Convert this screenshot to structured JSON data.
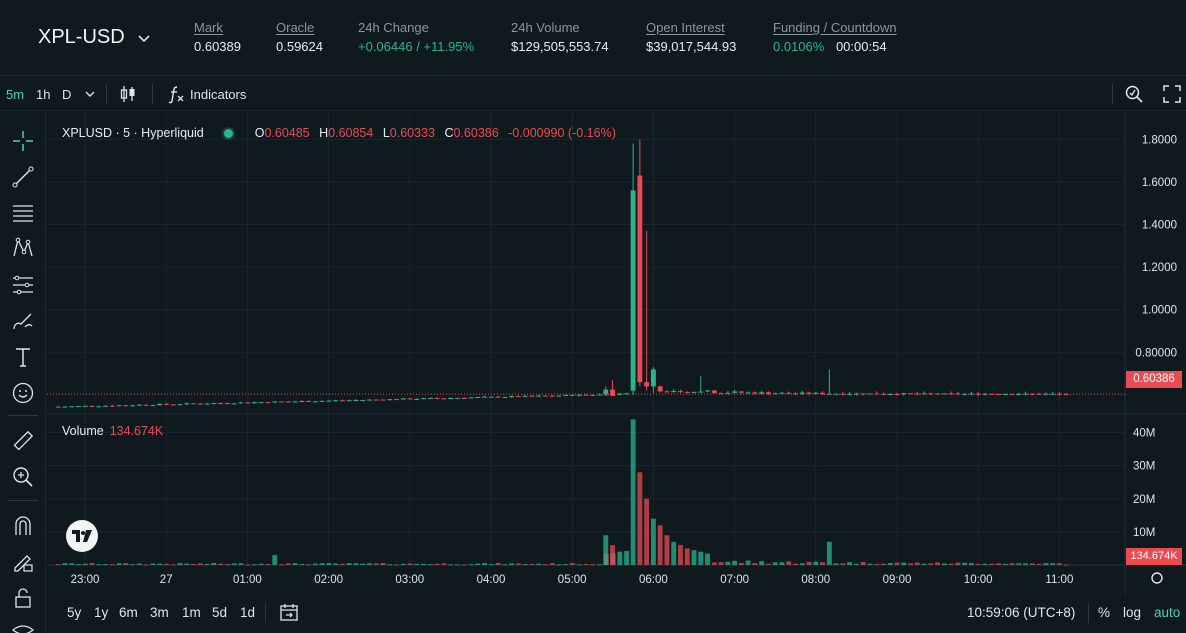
{
  "header": {
    "market": "XPL-USD",
    "stats": [
      {
        "label": "Mark",
        "value": "0.60389",
        "underline": true
      },
      {
        "label": "Oracle",
        "value": "0.59624",
        "underline": true
      },
      {
        "label": "24h Change",
        "value": "+0.06446 / +11.95%",
        "underline": false
      },
      {
        "label": "24h Volume",
        "value": "$129,505,553.74",
        "underline": false
      },
      {
        "label": "Open Interest",
        "value": "$39,017,544.93",
        "underline": true
      },
      {
        "label": "Funding / Countdown",
        "value": "0.0106%",
        "value2": "00:00:54",
        "underline": true
      }
    ]
  },
  "toolbar": {
    "timeframes": [
      "5m",
      "1h",
      "D"
    ],
    "active_timeframe": "5m",
    "indicators_label": "Indicators"
  },
  "legend": {
    "symbol": "XPLUSD · 5 · Hyperliquid",
    "o_label": "O",
    "o": "0.60485",
    "h_label": "H",
    "h": "0.60854",
    "l_label": "L",
    "l": "0.60333",
    "c_label": "C",
    "c": "0.60386",
    "change": "-0.000990 (-0.16%)"
  },
  "volume_legend": {
    "label": "Volume",
    "value": "134.674K"
  },
  "price_tag": "0.60386",
  "volume_tag": "134.674K",
  "bottombar": {
    "ranges": [
      "5y",
      "1y",
      "6m",
      "3m",
      "1m",
      "5d",
      "1d"
    ],
    "clock": "10:59:06 (UTC+8)",
    "percent": "%",
    "log": "log",
    "auto": "auto"
  },
  "colors": {
    "up": "#2bb38c",
    "down": "#ea4b52",
    "bg": "#0f1a1f",
    "grid": "#1a262b",
    "accent": "#4fd1b4"
  },
  "chart_data": {
    "type": "candlestick",
    "symbol": "XPLUSD",
    "interval": "5",
    "x_tick_labels": [
      "23:00",
      "27",
      "01:00",
      "02:00",
      "03:00",
      "04:00",
      "05:00",
      "06:00",
      "07:00",
      "08:00",
      "09:00",
      "10:00",
      "11:00"
    ],
    "price_axis_labels": [
      "1.8000",
      "1.6000",
      "1.4000",
      "1.2000",
      "1.0000",
      "0.80000"
    ],
    "price_axis_values": [
      1.8,
      1.6,
      1.4,
      1.2,
      1.0,
      0.8
    ],
    "ylim_price": [
      0.52,
      1.9
    ],
    "volume_axis_labels": [
      "40M",
      "30M",
      "20M",
      "10M"
    ],
    "volume_axis_values": [
      40000000,
      30000000,
      20000000,
      10000000
    ],
    "ylim_volume": [
      0,
      45000000
    ],
    "last_price": 0.60386,
    "last_volume": 134674,
    "candles_sample": [
      {
        "time": "05:45",
        "open": 0.62,
        "high": 1.78,
        "low": 0.6,
        "close": 1.56,
        "volume": 44000000
      },
      {
        "time": "05:50",
        "open": 1.63,
        "high": 1.8,
        "low": 0.64,
        "close": 0.66,
        "volume": 28000000
      },
      {
        "time": "05:55",
        "open": 0.66,
        "high": 1.37,
        "low": 0.62,
        "close": 0.64,
        "volume": 20000000
      },
      {
        "time": "06:00",
        "open": 0.64,
        "high": 0.73,
        "low": 0.61,
        "close": 0.72,
        "volume": 14000000
      },
      {
        "time": "10:55",
        "open": 0.60485,
        "high": 0.60854,
        "low": 0.60333,
        "close": 0.60386,
        "volume": 134674
      }
    ]
  }
}
